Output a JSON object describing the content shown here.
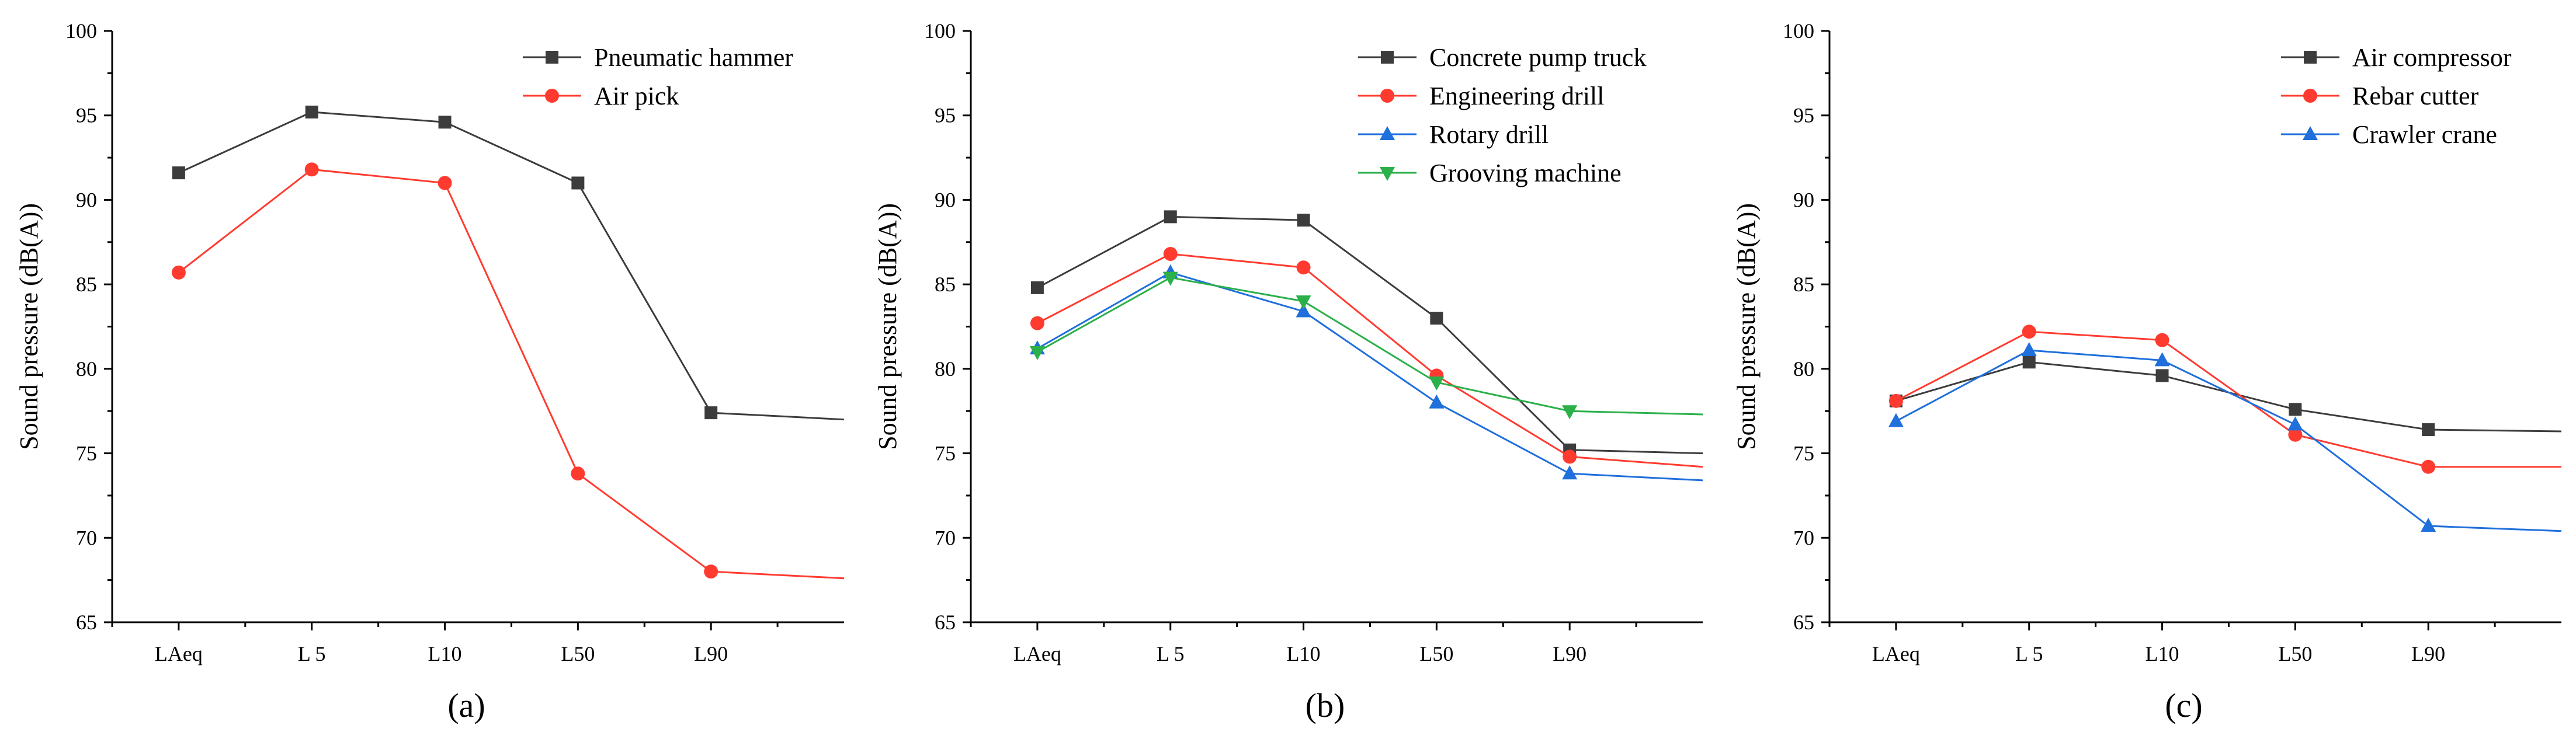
{
  "chart_data": [
    {
      "type": "line",
      "panel_label": "(a)",
      "ylabel": "Sound pressure (dB(A))",
      "categories": [
        "LAeq",
        "L 5",
        "L10",
        "L50",
        "L90"
      ],
      "ylim": [
        65,
        100
      ],
      "yticks": [
        65,
        70,
        75,
        80,
        85,
        90,
        95,
        100
      ],
      "x_end": 5.5,
      "legend_position": "top-right",
      "series": [
        {
          "name": "Pneumatic hammer",
          "color": "#3c3c3c",
          "marker": "square",
          "values": [
            91.6,
            95.2,
            94.6,
            91.0,
            77.4
          ],
          "end_value": 77.0
        },
        {
          "name": "Air pick",
          "color": "#ff3b30",
          "marker": "circle",
          "values": [
            85.7,
            91.8,
            91.0,
            73.8,
            68.0
          ],
          "end_value": 67.6
        }
      ]
    },
    {
      "type": "line",
      "panel_label": "(b)",
      "ylabel": "Sound pressure (dB(A))",
      "categories": [
        "LAeq",
        "L 5",
        "L10",
        "L50",
        "L90"
      ],
      "ylim": [
        65,
        100
      ],
      "yticks": [
        65,
        70,
        75,
        80,
        85,
        90,
        95,
        100
      ],
      "x_end": 5.5,
      "legend_position": "top-right",
      "series": [
        {
          "name": "Concrete pump truck",
          "color": "#3c3c3c",
          "marker": "square",
          "values": [
            84.8,
            89.0,
            88.8,
            83.0,
            75.2
          ],
          "end_value": 75.0
        },
        {
          "name": "Engineering drill",
          "color": "#ff3b30",
          "marker": "circle",
          "values": [
            82.7,
            86.8,
            86.0,
            79.6,
            74.8
          ],
          "end_value": 74.2
        },
        {
          "name": "Rotary drill",
          "color": "#1f6fdc",
          "marker": "triangle-up",
          "values": [
            81.2,
            85.7,
            83.4,
            78.0,
            73.8
          ],
          "end_value": 73.4
        },
        {
          "name": "Grooving machine",
          "color": "#2bb04a",
          "marker": "triangle-down",
          "values": [
            81.0,
            85.4,
            84.0,
            79.2,
            77.5
          ],
          "end_value": 77.3
        }
      ]
    },
    {
      "type": "line",
      "panel_label": "(c)",
      "ylabel": "Sound pressure (dB(A))",
      "categories": [
        "LAeq",
        "L 5",
        "L10",
        "L50",
        "L90"
      ],
      "ylim": [
        65,
        100
      ],
      "yticks": [
        65,
        70,
        75,
        80,
        85,
        90,
        95,
        100
      ],
      "x_end": 5.5,
      "legend_position": "top-right",
      "series": [
        {
          "name": "Air compressor",
          "color": "#3c3c3c",
          "marker": "square",
          "values": [
            78.1,
            80.4,
            79.6,
            77.6,
            76.4
          ],
          "end_value": 76.3
        },
        {
          "name": "Rebar cutter",
          "color": "#ff3b30",
          "marker": "circle",
          "values": [
            78.1,
            82.2,
            81.7,
            76.1,
            74.2
          ],
          "end_value": 74.2
        },
        {
          "name": "Crawler crane",
          "color": "#1f6fdc",
          "marker": "triangle-up",
          "values": [
            76.9,
            81.1,
            80.5,
            76.7,
            70.7
          ],
          "end_value": 70.4
        }
      ]
    }
  ]
}
